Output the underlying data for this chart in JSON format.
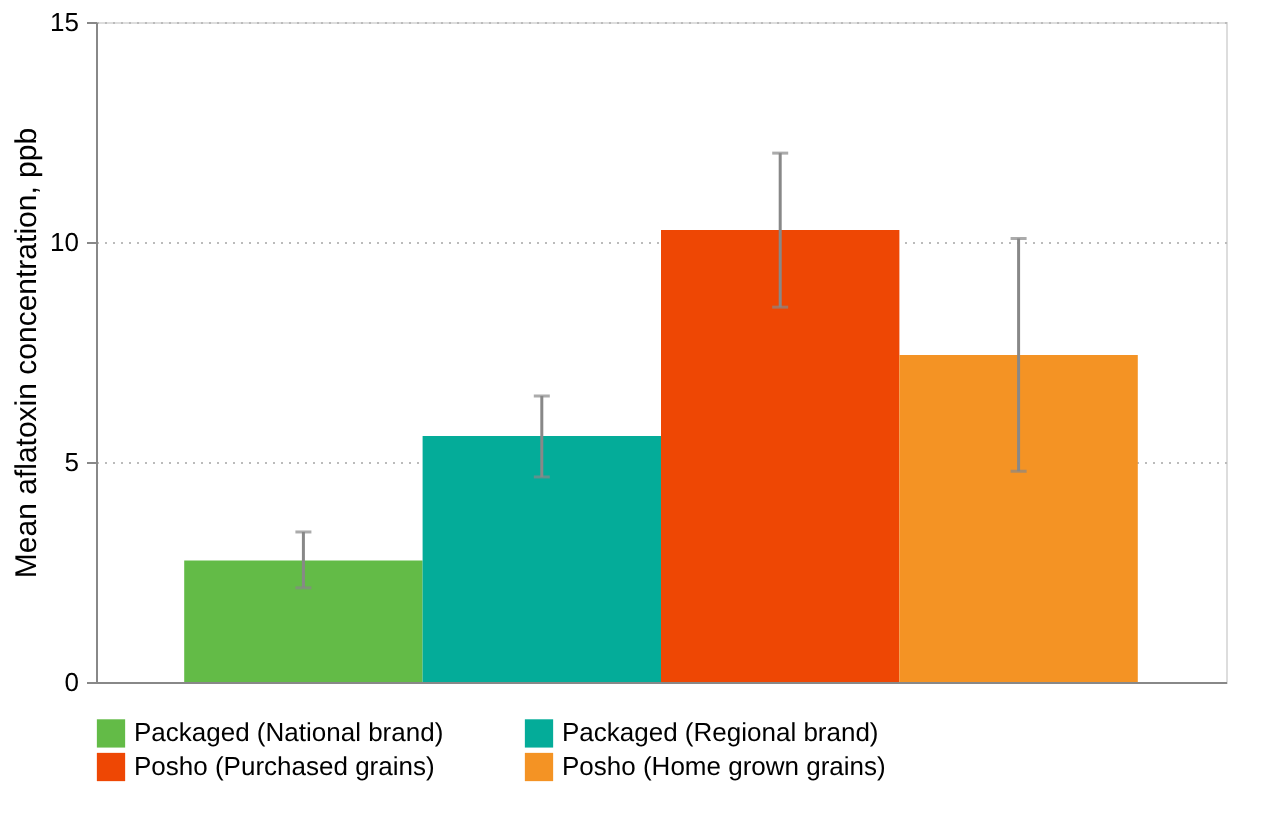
{
  "chart_data": {
    "type": "bar",
    "ylabel": "Mean aflatoxin concentration, ppb",
    "categories": [
      null,
      null,
      null,
      null
    ],
    "series": [
      {
        "name": "Packaged (National brand)",
        "color": "#63bb47",
        "values": [
          2.76,
          null,
          null,
          null
        ],
        "errors": [
          [
            2.14,
            3.41
          ],
          null,
          null,
          null
        ]
      },
      {
        "name": "Packaged (Regional brand)",
        "color": "#04ac99",
        "values": [
          null,
          5.59,
          null,
          null
        ],
        "errors": [
          null,
          [
            4.66,
            6.5
          ],
          null,
          null
        ]
      },
      {
        "name": "Posho (Purchased grains)",
        "color": "#ee4704",
        "values": [
          null,
          null,
          10.27,
          null
        ],
        "errors": [
          null,
          null,
          [
            8.52,
            12.02
          ],
          null
        ]
      },
      {
        "name": "Posho (Home grown grains)",
        "color": "#f49324",
        "values": [
          null,
          null,
          null,
          7.43
        ],
        "errors": [
          null,
          null,
          null,
          [
            4.79,
            10.08
          ]
        ]
      }
    ],
    "ylim": [
      0,
      15
    ],
    "yticks": [
      0,
      5,
      10,
      15
    ],
    "grid": "y",
    "legend": "bottom",
    "tick_labels": "y"
  }
}
